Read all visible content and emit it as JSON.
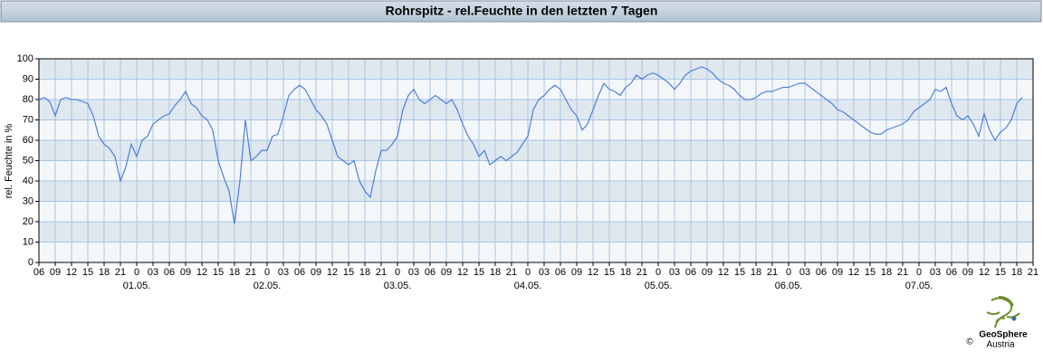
{
  "chart_data": {
    "type": "line",
    "title": "Rohrspitz - rel.Feuchte in den letzten 7 Tagen",
    "y_label": "rel. Feuchte in %",
    "ylim": [
      0,
      100
    ],
    "yticks": [
      0,
      10,
      20,
      30,
      40,
      50,
      60,
      70,
      80,
      90,
      100
    ],
    "grid": true,
    "banded": true,
    "xtick_labels": [
      "06",
      "09",
      "12",
      "15",
      "18",
      "21",
      "0",
      "03",
      "06",
      "09",
      "12",
      "15",
      "18",
      "21",
      "0",
      "03",
      "06",
      "09",
      "12",
      "15",
      "18",
      "21",
      "0",
      "03",
      "06",
      "09",
      "12",
      "15",
      "18",
      "21",
      "0",
      "03",
      "06",
      "09",
      "12",
      "15",
      "18",
      "21",
      "0",
      "03",
      "06",
      "09",
      "12",
      "15",
      "18",
      "21",
      "0",
      "03",
      "06",
      "09",
      "12",
      "15",
      "18",
      "21",
      "0",
      "03",
      "06",
      "09",
      "12",
      "15",
      "18",
      "21"
    ],
    "day_labels": [
      "01.05.",
      "02.05.",
      "03.05.",
      "04.05.",
      "05.05.",
      "06.05.",
      "07.05."
    ],
    "series": [
      {
        "name": "rel.Feuchte",
        "color": "#4f7fdc",
        "values": [
          80,
          81,
          79,
          72,
          80,
          81,
          80,
          80,
          79,
          78,
          72,
          62,
          58,
          56,
          52,
          40,
          47,
          58,
          52,
          60,
          62,
          68,
          70,
          72,
          73,
          77,
          80,
          84,
          78,
          76,
          72,
          70,
          65,
          50,
          42,
          35,
          19,
          40,
          70,
          50,
          52,
          55,
          55,
          62,
          63,
          72,
          82,
          85,
          87,
          85,
          80,
          75,
          72,
          68,
          60,
          52,
          50,
          48,
          50,
          40,
          35,
          32,
          45,
          55,
          55,
          58,
          62,
          75,
          82,
          85,
          80,
          78,
          80,
          82,
          80,
          78,
          80,
          75,
          68,
          62,
          58,
          52,
          55,
          48,
          50,
          52,
          50,
          52,
          54,
          58,
          62,
          75,
          80,
          82,
          85,
          87,
          85,
          80,
          75,
          72,
          65,
          68,
          75,
          82,
          88,
          85,
          84,
          82,
          86,
          88,
          92,
          90,
          92,
          93,
          92,
          90,
          88,
          85,
          88,
          92,
          94,
          95,
          96,
          95,
          93,
          90,
          88,
          87,
          85,
          82,
          80,
          80,
          81,
          83,
          84,
          84,
          85,
          86,
          86,
          87,
          88,
          88,
          86,
          84,
          82,
          80,
          78,
          75,
          74,
          72,
          70,
          68,
          66,
          64,
          63,
          63,
          65,
          66,
          67,
          68,
          70,
          74,
          76,
          78,
          80,
          85,
          84,
          86,
          78,
          72,
          70,
          72,
          68,
          62,
          73,
          65,
          60,
          64,
          66,
          70,
          78,
          81
        ]
      }
    ],
    "logo": {
      "name": "GeoSphere",
      "sub": "Austria",
      "copyright": "©"
    }
  }
}
